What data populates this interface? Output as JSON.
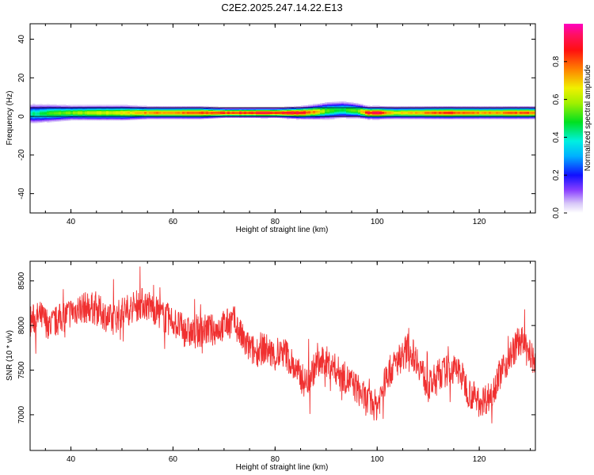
{
  "title": "C2E2.2025.247.14.22.E13",
  "chart_data": [
    {
      "type": "heatmap",
      "xlabel": "Height of straight line (km)",
      "ylabel": "Frequency (Hz)",
      "xlim": [
        32,
        131
      ],
      "ylim": [
        -50,
        48
      ],
      "xticks": [
        40,
        60,
        80,
        100,
        120
      ],
      "yticks": [
        -40,
        -20,
        0,
        20,
        40
      ],
      "colorbar": {
        "label": "Normalized spectral amplitude",
        "range": [
          0,
          1
        ],
        "ticks": [
          0.0,
          0.2,
          0.4,
          0.6,
          0.8
        ]
      },
      "band_profile": {
        "height_km": [
          33,
          36,
          40,
          45,
          50,
          55,
          60,
          65,
          70,
          75,
          80,
          85,
          88,
          90,
          93,
          96,
          98,
          100,
          103,
          106,
          110,
          113,
          116,
          120,
          124,
          128,
          131
        ],
        "center_freq_hz": [
          1.5,
          1.8,
          2.0,
          2.0,
          2.0,
          2.0,
          2.0,
          2.0,
          2.0,
          2.0,
          2.0,
          2.0,
          2.5,
          3.0,
          3.5,
          3.0,
          2.0,
          2.0,
          2.0,
          2.0,
          2.0,
          2.0,
          2.0,
          2.0,
          2.0,
          2.0,
          2.0
        ],
        "half_width_hz": [
          4.0,
          3.5,
          3.0,
          3.0,
          3.0,
          2.5,
          2.5,
          2.5,
          2.0,
          2.0,
          2.0,
          2.5,
          3.0,
          3.5,
          3.5,
          3.0,
          2.5,
          2.5,
          2.5,
          2.5,
          2.5,
          2.5,
          2.5,
          2.5,
          2.5,
          2.5,
          2.5
        ],
        "peak_amplitude": [
          0.45,
          0.55,
          0.6,
          0.65,
          0.7,
          0.8,
          0.8,
          0.85,
          0.9,
          0.92,
          0.95,
          0.95,
          0.75,
          0.55,
          0.5,
          0.6,
          0.95,
          0.95,
          0.7,
          0.75,
          0.8,
          0.9,
          0.85,
          0.8,
          0.8,
          0.85,
          0.85
        ]
      }
    },
    {
      "type": "line",
      "xlabel": "Height of straight line (km)",
      "ylabel": "SNR (10 * v/v)",
      "xlim": [
        32,
        131
      ],
      "ylim": [
        6600,
        8720
      ],
      "xticks": [
        40,
        60,
        80,
        100,
        120
      ],
      "yticks": [
        7000,
        7500,
        8000,
        8500
      ],
      "color": "#f03030",
      "series": [
        {
          "x": [
            32,
            34,
            36,
            38,
            40,
            42,
            44,
            46,
            48,
            50,
            52,
            54,
            56,
            58,
            60,
            62,
            64,
            66,
            68,
            70,
            72,
            74,
            76,
            78,
            80,
            82,
            84,
            86,
            88,
            90,
            92,
            94,
            96,
            98,
            100,
            102,
            104,
            106,
            108,
            110,
            112,
            114,
            116,
            118,
            120,
            122,
            124,
            126,
            128,
            130,
            131
          ],
          "y": [
            8050,
            8100,
            8000,
            8080,
            8150,
            8200,
            8200,
            8150,
            8050,
            8150,
            8200,
            8250,
            8200,
            8100,
            8050,
            7950,
            7900,
            7950,
            7950,
            8000,
            8050,
            7800,
            7700,
            7750,
            7650,
            7700,
            7500,
            7350,
            7550,
            7600,
            7500,
            7400,
            7300,
            7150,
            7100,
            7450,
            7600,
            7750,
            7600,
            7300,
            7450,
            7500,
            7500,
            7250,
            7150,
            7200,
            7450,
            7650,
            7850,
            7650,
            7600
          ],
          "noise_amplitude": 300
        }
      ]
    }
  ]
}
